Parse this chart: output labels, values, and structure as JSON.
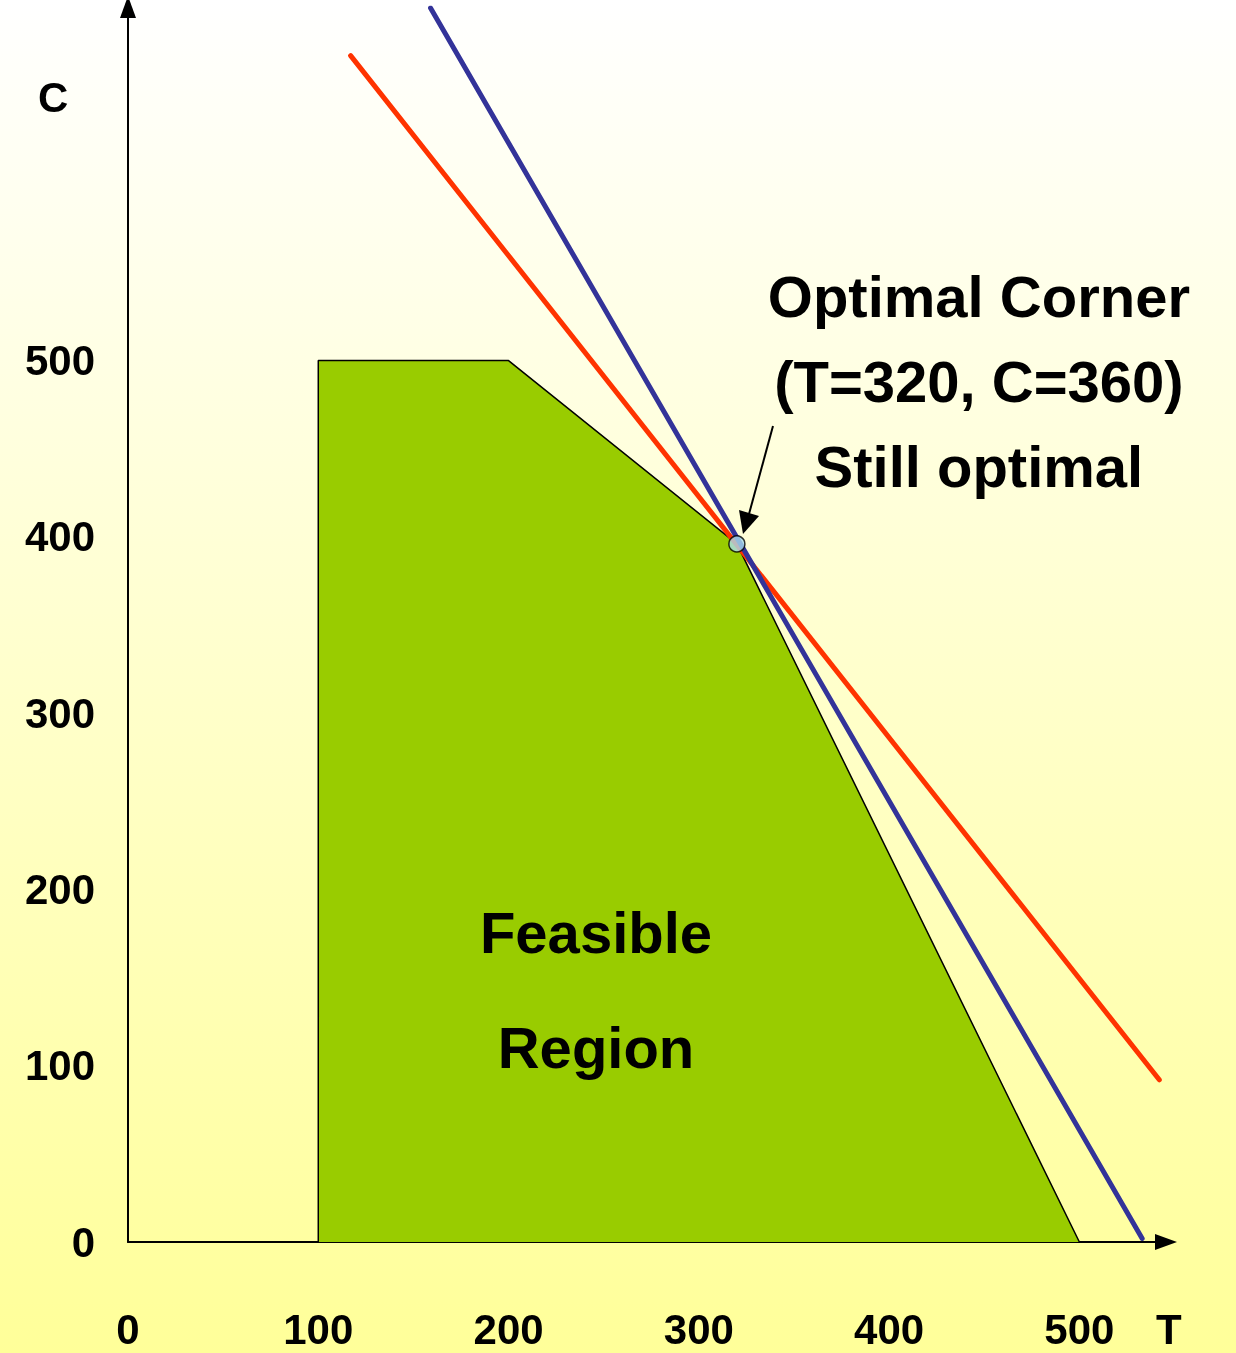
{
  "chart_data": {
    "type": "line",
    "xlabel": "T",
    "ylabel": "C",
    "xlim": [
      0,
      545
    ],
    "ylim": [
      0,
      700
    ],
    "xticks": [
      0,
      100,
      200,
      300,
      400,
      500
    ],
    "yticks": [
      0,
      100,
      200,
      300,
      400,
      500
    ],
    "grid": false,
    "series": [
      {
        "type": "area",
        "color": "#99cc00",
        "x": [
          100,
          100,
          200,
          320,
          500
        ],
        "values": [
          0,
          500,
          500,
          396,
          0
        ]
      },
      {
        "color": "#ff3300",
        "x": [
          117,
          542
        ],
        "values": [
          673,
          92
        ]
      },
      {
        "color": "#333399",
        "x": [
          159,
          533
        ],
        "values": [
          700,
          2
        ]
      },
      {
        "type": "scatter",
        "color": "#aaddee",
        "marker": "circle",
        "x": [
          320
        ],
        "values": [
          396
        ]
      }
    ],
    "annotations": [
      {
        "text": "Optimal Corner\n(T=320, C=360)\nStill optimal",
        "x": 320,
        "y": 396
      },
      "Feasible\nRegion"
    ]
  }
}
